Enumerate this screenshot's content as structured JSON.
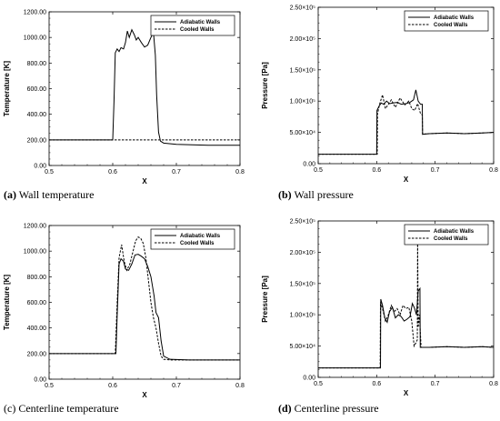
{
  "chart_data": [
    {
      "id": "a",
      "type": "line",
      "caption_letter": "(a)",
      "caption_text": "Wall temperature",
      "xlabel": "X",
      "ylabel": "Temperature [K]",
      "xlim": [
        0.5,
        0.8
      ],
      "ylim": [
        0,
        1200
      ],
      "xticks": [
        0.5,
        0.6,
        0.7,
        0.8
      ],
      "xtick_labels": [
        "0.5",
        "0.6",
        "0.7",
        "0.8"
      ],
      "yticks": [
        0,
        200,
        400,
        600,
        800,
        1000,
        1200
      ],
      "ytick_labels": [
        "0.00",
        "200.00",
        "400.00",
        "600.00",
        "800.00",
        "1000.00",
        "1200.00"
      ],
      "legend_position": "top-right",
      "series": [
        {
          "name": "Adiabatic Walls",
          "style": "solid",
          "x": [
            0.5,
            0.6,
            0.602,
            0.604,
            0.607,
            0.61,
            0.613,
            0.617,
            0.62,
            0.623,
            0.626,
            0.63,
            0.634,
            0.637,
            0.64,
            0.645,
            0.65,
            0.655,
            0.66,
            0.664,
            0.667,
            0.669,
            0.672,
            0.675,
            0.68,
            0.7,
            0.75,
            0.8
          ],
          "y": [
            200,
            200,
            500,
            880,
            910,
            890,
            920,
            910,
            960,
            1050,
            1000,
            1060,
            1020,
            980,
            1000,
            960,
            925,
            940,
            1000,
            1040,
            860,
            550,
            260,
            190,
            175,
            165,
            158,
            158
          ]
        },
        {
          "name": "Cooled Walls",
          "style": "dashed",
          "x": [
            0.5,
            0.8
          ],
          "y": [
            200,
            200
          ]
        }
      ]
    },
    {
      "id": "b",
      "type": "line",
      "caption_letter": "(b)",
      "caption_text": "Wall pressure",
      "xlabel": "X",
      "ylabel": "Pressure [Pa]",
      "xlim": [
        0.5,
        0.8
      ],
      "ylim": [
        0,
        250000
      ],
      "xticks": [
        0.5,
        0.6,
        0.7,
        0.8
      ],
      "xtick_labels": [
        "0.5",
        "0.6",
        "0.7",
        "0.8"
      ],
      "yticks": [
        0,
        50000,
        100000,
        150000,
        200000,
        250000
      ],
      "ytick_labels": [
        "0.00",
        "5.00×10⁴",
        "1.00×10⁵",
        "1.50×10⁵",
        "2.00×10⁵",
        "2.50×10⁵"
      ],
      "legend_position": "top-right",
      "series": [
        {
          "name": "Adiabatic Walls",
          "style": "solid",
          "x": [
            0.5,
            0.6,
            0.6005,
            0.604,
            0.608,
            0.612,
            0.617,
            0.622,
            0.628,
            0.635,
            0.642,
            0.65,
            0.657,
            0.663,
            0.667,
            0.671,
            0.675,
            0.678,
            0.6785,
            0.69,
            0.72,
            0.75,
            0.78,
            0.8
          ],
          "y": [
            15000,
            15000,
            85000,
            92000,
            97000,
            95000,
            100000,
            96000,
            97000,
            98000,
            95000,
            96000,
            98000,
            102000,
            118000,
            100000,
            95000,
            95000,
            47000,
            48000,
            49000,
            48000,
            49000,
            50000
          ]
        },
        {
          "name": "Cooled Walls",
          "style": "dashed",
          "x": [
            0.5,
            0.601,
            0.6015,
            0.605,
            0.61,
            0.615,
            0.62,
            0.625,
            0.632,
            0.64,
            0.648,
            0.655,
            0.66,
            0.665,
            0.67,
            0.675,
            0.678,
            0.6785,
            0.69,
            0.72,
            0.75,
            0.78,
            0.8
          ],
          "y": [
            15000,
            15000,
            80000,
            95000,
            110000,
            88000,
            95000,
            102000,
            90000,
            105000,
            94000,
            100000,
            88000,
            85000,
            96000,
            80000,
            78000,
            47000,
            48000,
            49000,
            48000,
            49000,
            50000
          ]
        }
      ]
    },
    {
      "id": "c",
      "type": "line",
      "caption_letter": "(c)",
      "caption_text": "Centerline temperature",
      "xlabel": "X",
      "ylabel": "Temperature [K]",
      "xlim": [
        0.5,
        0.8
      ],
      "ylim": [
        0,
        1200
      ],
      "xticks": [
        0.5,
        0.6,
        0.7,
        0.8
      ],
      "xtick_labels": [
        "0.5",
        "0.6",
        "0.7",
        "0.8"
      ],
      "yticks": [
        0,
        200,
        400,
        600,
        800,
        1000,
        1200
      ],
      "ytick_labels": [
        "0.00",
        "200.00",
        "400.00",
        "600.00",
        "800.00",
        "1000.00",
        "1200.00"
      ],
      "legend_position": "top-right",
      "series": [
        {
          "name": "Adiabatic Walls",
          "style": "solid",
          "x": [
            0.5,
            0.605,
            0.607,
            0.61,
            0.613,
            0.617,
            0.62,
            0.625,
            0.63,
            0.635,
            0.64,
            0.645,
            0.65,
            0.655,
            0.66,
            0.665,
            0.668,
            0.672,
            0.676,
            0.68,
            0.69,
            0.72,
            0.75,
            0.8
          ],
          "y": [
            200,
            200,
            500,
            900,
            940,
            920,
            860,
            850,
            900,
            970,
            975,
            960,
            940,
            880,
            800,
            650,
            520,
            480,
            300,
            180,
            155,
            150,
            150,
            150
          ]
        },
        {
          "name": "Cooled Walls",
          "style": "dashed",
          "x": [
            0.5,
            0.604,
            0.607,
            0.61,
            0.614,
            0.618,
            0.622,
            0.627,
            0.632,
            0.636,
            0.64,
            0.644,
            0.648,
            0.652,
            0.655,
            0.66,
            0.664,
            0.668,
            0.672,
            0.676,
            0.68,
            0.69,
            0.72,
            0.75,
            0.8
          ],
          "y": [
            200,
            200,
            600,
            950,
            1050,
            920,
            850,
            900,
            1000,
            1080,
            1110,
            1100,
            1060,
            950,
            820,
            600,
            480,
            400,
            280,
            180,
            155,
            150,
            150,
            150,
            150
          ]
        }
      ]
    },
    {
      "id": "d",
      "type": "line",
      "caption_letter": "(d)",
      "caption_text": "Centerline pressure",
      "xlabel": "X",
      "ylabel": "Pressure [Pa]",
      "xlim": [
        0.5,
        0.8
      ],
      "ylim": [
        0,
        250000
      ],
      "xticks": [
        0.5,
        0.6,
        0.7,
        0.8
      ],
      "xtick_labels": [
        "0.5",
        "0.6",
        "0.7",
        "0.8"
      ],
      "yticks": [
        0,
        50000,
        100000,
        150000,
        200000,
        250000
      ],
      "ytick_labels": [
        "0.00",
        "5.00×10⁴",
        "1.00×10⁵",
        "1.50×10⁵",
        "2.00×10⁵",
        "2.50×10⁵"
      ],
      "legend_position": "top-right",
      "series": [
        {
          "name": "Adiabatic Walls",
          "style": "solid",
          "x": [
            0.5,
            0.6065,
            0.607,
            0.61,
            0.614,
            0.618,
            0.622,
            0.627,
            0.632,
            0.637,
            0.642,
            0.647,
            0.652,
            0.657,
            0.661,
            0.665,
            0.668,
            0.671,
            0.674,
            0.6745,
            0.69,
            0.72,
            0.75,
            0.78,
            0.8
          ],
          "y": [
            15000,
            15000,
            125000,
            115000,
            95000,
            88000,
            105000,
            112000,
            95000,
            100000,
            97000,
            90000,
            93000,
            97000,
            118000,
            110000,
            100000,
            138000,
            142000,
            48000,
            48000,
            49000,
            48000,
            49000,
            48000
          ]
        },
        {
          "name": "Cooled Walls",
          "style": "dashed",
          "x": [
            0.5,
            0.606,
            0.6065,
            0.61,
            0.615,
            0.62,
            0.625,
            0.63,
            0.635,
            0.64,
            0.645,
            0.65,
            0.655,
            0.66,
            0.664,
            0.667,
            0.6695,
            0.67,
            0.671,
            0.673,
            0.676,
            0.69,
            0.72,
            0.75,
            0.78,
            0.8
          ],
          "y": [
            15000,
            15000,
            120000,
            110000,
            90000,
            100000,
            115000,
            105000,
            110000,
            100000,
            115000,
            110000,
            112000,
            90000,
            50000,
            55000,
            60000,
            225000,
            80000,
            100000,
            48000,
            48000,
            49000,
            48000,
            49000,
            48000
          ]
        }
      ]
    }
  ]
}
